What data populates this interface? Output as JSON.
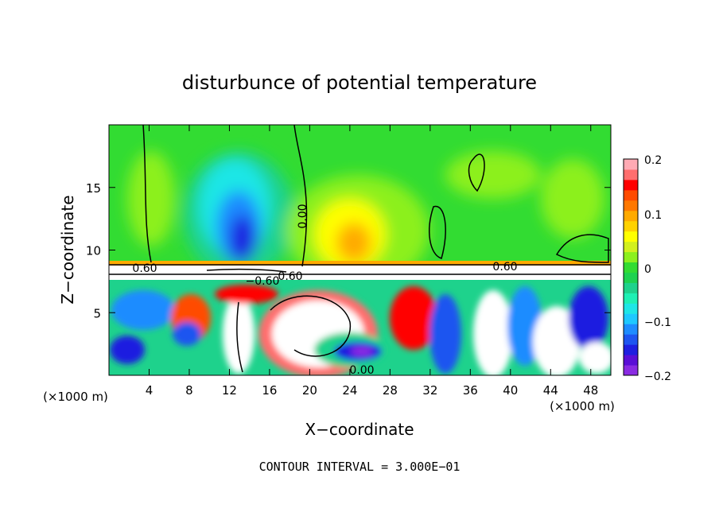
{
  "chart_data": {
    "type": "heatmap",
    "title": "disturbunce of potential temperature",
    "xlabel": "X−coordinate",
    "ylabel": "Z−coordinate",
    "x_unit": "(×1000 m)",
    "xlim": [
      0,
      50
    ],
    "ylim": [
      0,
      20
    ],
    "x_ticks": [
      "4",
      "8",
      "12",
      "16",
      "20",
      "24",
      "28",
      "32",
      "36",
      "40",
      "44",
      "48"
    ],
    "y_ticks": [
      "5",
      "10",
      "15"
    ],
    "colorbar": {
      "range": [
        -0.2,
        0.2
      ],
      "tick_labels": [
        "0.2",
        "0.1",
        "0",
        "−0.1",
        "−0.2"
      ],
      "colors": [
        "#8a2be2",
        "#5a0fd6",
        "#1f1fe0",
        "#1e55f0",
        "#1e8cff",
        "#1ec8ff",
        "#1ee6e6",
        "#1ef0b4",
        "#1ed28c",
        "#1ed250",
        "#32dc32",
        "#8cf01e",
        "#d2f01e",
        "#ffff00",
        "#ffd200",
        "#ffaa00",
        "#ff7800",
        "#ff4b00",
        "#ff0000",
        "#ff6e6e",
        "#ffaab4"
      ]
    },
    "contour_labels": [
      "0.00",
      "0.60",
      "0.60",
      "−0.60",
      "0.60",
      "0.00"
    ],
    "footer": "CONTOUR INTERVAL = 3.000E−01"
  }
}
